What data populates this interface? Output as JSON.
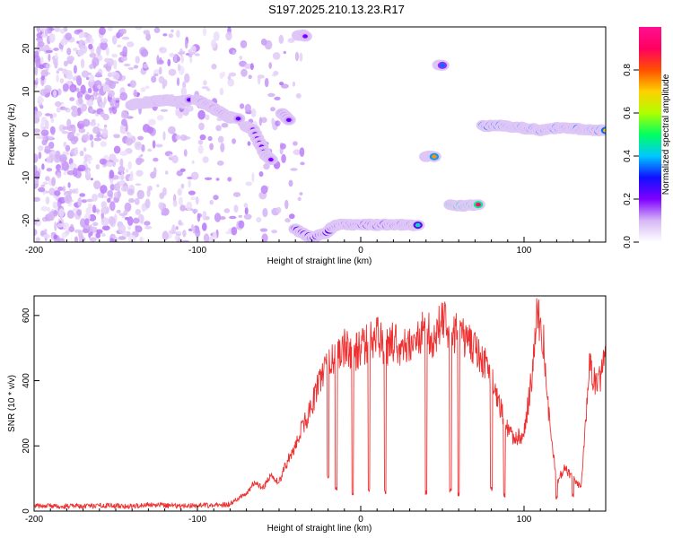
{
  "figure": {
    "title": "S197.2025.210.13.23.R17"
  },
  "chart_data": [
    {
      "type": "heatmap",
      "xlabel": "Height of straight line (km)",
      "ylabel": "Frequency (Hz)",
      "xlim": [
        -200,
        150
      ],
      "ylim": [
        -25,
        25
      ],
      "xticks": [
        -200,
        -100,
        0,
        100
      ],
      "yticks": [
        -20,
        -10,
        0,
        10,
        20
      ],
      "grid": false,
      "colorbar": {
        "label": "Normalized spectral amplitude",
        "range": [
          0,
          1
        ],
        "ticks": [
          0.0,
          0.2,
          0.4,
          0.6,
          0.8
        ],
        "tick_labels": [
          "0.0",
          "0.2",
          "0.4",
          "0.6",
          "0.8"
        ],
        "colors": [
          "#ffffff",
          "#d6b8f5",
          "#7f00ff",
          "#1010ff",
          "#00c8ff",
          "#00ff60",
          "#b0ff00",
          "#ffd000",
          "#ff5000",
          "#ff0060",
          "#ff1090"
        ]
      },
      "ridges": [
        {
          "points": [
            [
              -140,
              7
            ],
            [
              -130,
              7.5
            ],
            [
              -120,
              8
            ],
            [
              -110,
              7.5
            ],
            [
              -105,
              8
            ]
          ],
          "amplitude": 0.22
        },
        {
          "points": [
            [
              -100,
              8
            ],
            [
              -90,
              6
            ],
            [
              -80,
              4
            ],
            [
              -75,
              3.5
            ]
          ],
          "amplitude": 0.22
        },
        {
          "points": [
            [
              -70,
              2
            ],
            [
              -66,
              1
            ],
            [
              -62,
              -2
            ],
            [
              -58,
              -5
            ],
            [
              -55,
              -6
            ]
          ],
          "amplitude": 0.2
        },
        {
          "points": [
            [
              -48,
              5
            ],
            [
              -44,
              3.5
            ]
          ],
          "amplitude": 0.22
        },
        {
          "points": [
            [
              -40,
              -22
            ],
            [
              -30,
              -24
            ],
            [
              -22,
              -23
            ],
            [
              -15,
              -21
            ],
            [
              -5,
              -21
            ],
            [
              10,
              -21
            ],
            [
              25,
              -21
            ],
            [
              35,
              -21
            ]
          ],
          "amplitude": 0.45
        },
        {
          "points": [
            [
              -38,
              23
            ],
            [
              -34,
              23
            ]
          ],
          "amplitude": 0.2
        },
        {
          "points": [
            [
              40,
              -5
            ],
            [
              45,
              -5
            ]
          ],
          "amplitude": 0.75
        },
        {
          "points": [
            [
              48,
              16
            ],
            [
              50,
              16
            ]
          ],
          "amplitude": 0.35
        },
        {
          "points": [
            [
              55,
              -16.5
            ],
            [
              72,
              -16.5
            ]
          ],
          "amplitude": 0.95
        },
        {
          "points": [
            [
              75,
              2
            ],
            [
              90,
              2
            ],
            [
              100,
              1.5
            ],
            [
              110,
              1
            ],
            [
              120,
              1.5
            ],
            [
              130,
              1.5
            ],
            [
              140,
              1
            ],
            [
              150,
              1
            ]
          ],
          "amplitude": 0.7
        }
      ]
    },
    {
      "type": "line",
      "xlabel": "Height of straight line (km)",
      "ylabel": "SNR (10 * v/v)",
      "xlim": [
        -200,
        150
      ],
      "ylim": [
        0,
        660
      ],
      "xticks": [
        -200,
        -100,
        0,
        100
      ],
      "yticks": [
        0,
        200,
        400,
        600
      ],
      "grid": false,
      "series": [
        {
          "color": "#ee3030",
          "x": [
            -200,
            -190,
            -180,
            -170,
            -160,
            -150,
            -140,
            -130,
            -120,
            -110,
            -100,
            -90,
            -80,
            -75,
            -70,
            -65,
            -60,
            -55,
            -50,
            -45,
            -40,
            -35,
            -30,
            -25,
            -20,
            -15,
            -10,
            -5,
            0,
            5,
            10,
            15,
            20,
            25,
            30,
            35,
            40,
            45,
            50,
            55,
            60,
            65,
            70,
            75,
            80,
            85,
            90,
            95,
            100,
            105,
            108,
            112,
            115,
            120,
            125,
            130,
            135,
            140,
            145,
            150
          ],
          "y": [
            15,
            15,
            16,
            15,
            17,
            16,
            15,
            20,
            17,
            16,
            18,
            17,
            22,
            40,
            50,
            90,
            70,
            110,
            90,
            150,
            200,
            260,
            320,
            410,
            450,
            470,
            500,
            480,
            500,
            520,
            540,
            500,
            520,
            500,
            500,
            530,
            560,
            520,
            600,
            540,
            560,
            520,
            500,
            460,
            420,
            330,
            250,
            220,
            240,
            420,
            630,
            520,
            300,
            90,
            130,
            100,
            70,
            440,
            380,
            480
          ]
        }
      ],
      "dropouts": [
        [
          -36,
          270
        ],
        [
          -30,
          300
        ],
        [
          -20,
          100
        ],
        [
          -15,
          60
        ],
        [
          -5,
          40
        ],
        [
          5,
          55
        ],
        [
          15,
          50
        ],
        [
          40,
          50
        ],
        [
          55,
          55
        ],
        [
          60,
          45
        ],
        [
          80,
          60
        ],
        [
          88,
          40
        ],
        [
          120,
          30
        ],
        [
          130,
          40
        ]
      ]
    }
  ]
}
